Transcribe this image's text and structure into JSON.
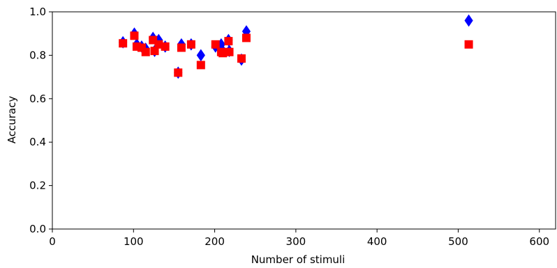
{
  "chart_data": {
    "type": "scatter",
    "xlabel": "Number of stimuli",
    "ylabel": "Accuracy",
    "xlim": [
      0,
      620
    ],
    "ylim": [
      0.0,
      1.0
    ],
    "x_ticks": [
      "0",
      "100",
      "200",
      "300",
      "400",
      "500",
      "600"
    ],
    "y_ticks": [
      "0.0",
      "0.2",
      "0.4",
      "0.6",
      "0.8",
      "1.0"
    ],
    "grid": false,
    "legend": "none",
    "series": [
      {
        "marker": "diamond",
        "color": "#0000ff",
        "points": [
          [
            87,
            0.86
          ],
          [
            101,
            0.9
          ],
          [
            104,
            0.85
          ],
          [
            110,
            0.84
          ],
          [
            115,
            0.83
          ],
          [
            124,
            0.88
          ],
          [
            126,
            0.82
          ],
          [
            131,
            0.87
          ],
          [
            139,
            0.84
          ],
          [
            155,
            0.72
          ],
          [
            159,
            0.85
          ],
          [
            171,
            0.85
          ],
          [
            183,
            0.8
          ],
          [
            201,
            0.84
          ],
          [
            208,
            0.85
          ],
          [
            210,
            0.82
          ],
          [
            217,
            0.87
          ],
          [
            218,
            0.82
          ],
          [
            233,
            0.78
          ],
          [
            239,
            0.91
          ],
          [
            513,
            0.96
          ]
        ]
      },
      {
        "marker": "square",
        "color": "#ff0000",
        "points": [
          [
            87,
            0.855
          ],
          [
            101,
            0.89
          ],
          [
            104,
            0.84
          ],
          [
            110,
            0.835
          ],
          [
            115,
            0.815
          ],
          [
            124,
            0.87
          ],
          [
            126,
            0.82
          ],
          [
            131,
            0.85
          ],
          [
            139,
            0.84
          ],
          [
            155,
            0.72
          ],
          [
            159,
            0.835
          ],
          [
            171,
            0.85
          ],
          [
            183,
            0.755
          ],
          [
            201,
            0.85
          ],
          [
            208,
            0.815
          ],
          [
            210,
            0.81
          ],
          [
            217,
            0.865
          ],
          [
            218,
            0.815
          ],
          [
            233,
            0.785
          ],
          [
            239,
            0.88
          ],
          [
            513,
            0.85
          ]
        ]
      }
    ]
  }
}
